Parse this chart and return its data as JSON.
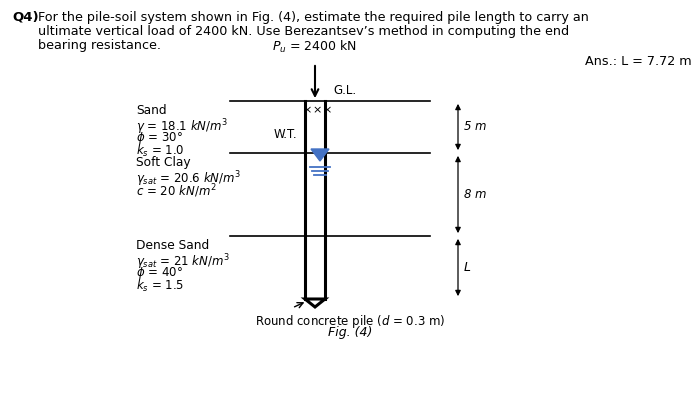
{
  "bg_color": "#ffffff",
  "text_color": "#000000",
  "q4_bold": "Q4)",
  "q_line1": " For the pile-soil system shown in Fig. (4), estimate the required pile length to carry an",
  "q_line2": "ultimate vertical load of 2400 kN. Use Berezantsev’s method in computing the end",
  "q_line3": "bearing resistance.",
  "ans_text": "Ans.: L = 7.72 m",
  "pu_text": "$P_u$ = 2400 kN",
  "gl_text": "G.L.",
  "wt_text": "W.T.",
  "fig_text": "Fig. (4)",
  "pile_note": "Round concrete pile ($d$ = 0.3 m)",
  "layer1_name": "Sand",
  "layer1_p1": "$\\gamma$ = 18.1 $kN/m^3$",
  "layer1_p2": "$\\phi$ = 30°",
  "layer1_p3": "$k_s$ = 1.0",
  "layer1_dim": "5 $m$",
  "layer2_name": "Soft Clay",
  "layer2_p1": "$\\gamma_{sat}$ = 20.6 $kN/m^3$",
  "layer2_p2": "$c$ = 20 $kN/m^2$",
  "layer2_dim": "8 $m$",
  "layer3_name": "Dense Sand",
  "layer3_p1": "$\\gamma_{sat}$ = 21 $kN/m^3$",
  "layer3_p2": "$\\phi$ = 40°",
  "layer3_p3": "$k_s$ = 1.5",
  "layer3_dim": "$L$",
  "wt_color": "#4472c4",
  "pile_lw": 2.2,
  "border_lw": 1.2
}
